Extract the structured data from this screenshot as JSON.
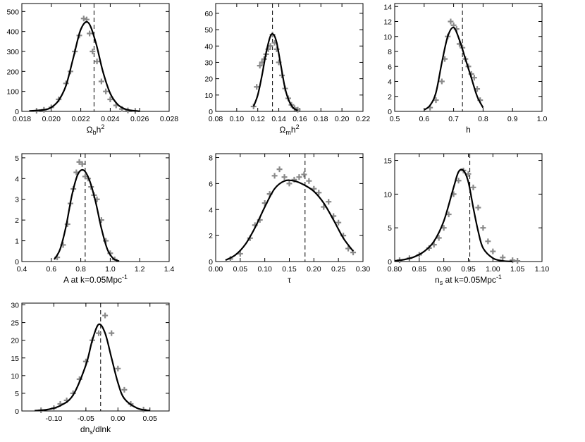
{
  "chart_data": [
    {
      "type": "line",
      "xlabel": "Ωbh2",
      "xlabel_parts": [
        {
          "t": "Ω"
        },
        {
          "t": "b",
          "sub": true
        },
        {
          "t": "h"
        },
        {
          "t": "2",
          "sup": true
        }
      ],
      "xlim": [
        0.018,
        0.028
      ],
      "ylim": [
        0,
        540
      ],
      "xticks": [
        0.018,
        0.02,
        0.022,
        0.024,
        0.026,
        0.028
      ],
      "xtick_labels": [
        "0.018",
        "0.020",
        "0.022",
        "0.024",
        "0.026",
        "0.028"
      ],
      "yticks": [
        0,
        100,
        200,
        300,
        400,
        500
      ],
      "ytick_labels": [
        "0",
        "100",
        "200",
        "300",
        "400",
        "500"
      ],
      "vline": 0.0229,
      "curve": {
        "x": [
          0.0185,
          0.0195,
          0.02,
          0.0205,
          0.021,
          0.0215,
          0.022,
          0.0225,
          0.023,
          0.0235,
          0.024,
          0.0245,
          0.025,
          0.0255,
          0.026
        ],
        "y": [
          2,
          8,
          20,
          55,
          130,
          270,
          410,
          445,
          350,
          200,
          90,
          35,
          12,
          4,
          1
        ]
      },
      "points": {
        "x": [
          0.019,
          0.0195,
          0.02,
          0.0205,
          0.021,
          0.0213,
          0.0216,
          0.0219,
          0.0222,
          0.0224,
          0.0226,
          0.0228,
          0.0231,
          0.0234,
          0.0237,
          0.024,
          0.0244,
          0.0248,
          0.0252,
          0.0257
        ],
        "y": [
          3,
          8,
          20,
          60,
          140,
          200,
          300,
          380,
          465,
          460,
          390,
          300,
          250,
          150,
          100,
          60,
          30,
          12,
          5,
          2
        ]
      }
    },
    {
      "type": "line",
      "xlabel": "Ωmh2",
      "xlabel_parts": [
        {
          "t": "Ω"
        },
        {
          "t": "m",
          "sub": true
        },
        {
          "t": "h"
        },
        {
          "t": "2",
          "sup": true
        }
      ],
      "xlim": [
        0.08,
        0.22
      ],
      "ylim": [
        0,
        66
      ],
      "xticks": [
        0.08,
        0.1,
        0.12,
        0.14,
        0.16,
        0.18,
        0.2,
        0.22
      ],
      "xtick_labels": [
        "0.08",
        "0.10",
        "0.12",
        "0.14",
        "0.16",
        "0.18",
        "0.20",
        "0.22"
      ],
      "yticks": [
        0,
        10,
        20,
        30,
        40,
        50,
        60
      ],
      "ytick_labels": [
        "0",
        "10",
        "20",
        "30",
        "40",
        "50",
        "60"
      ],
      "vline": 0.134,
      "curve": {
        "x": [
          0.116,
          0.12,
          0.124,
          0.128,
          0.132,
          0.135,
          0.138,
          0.142,
          0.146,
          0.15,
          0.154,
          0.158
        ],
        "y": [
          3,
          10,
          22,
          36,
          46,
          47,
          42,
          28,
          14,
          6,
          2,
          0.5
        ]
      },
      "points": {
        "x": [
          0.116,
          0.119,
          0.122,
          0.124,
          0.126,
          0.128,
          0.13,
          0.132,
          0.134,
          0.136,
          0.138,
          0.14,
          0.143,
          0.146,
          0.149,
          0.152,
          0.155,
          0.158
        ],
        "y": [
          3,
          15,
          28,
          30,
          32,
          35,
          38,
          40,
          47,
          42,
          38,
          30,
          22,
          14,
          8,
          4,
          2,
          1
        ]
      }
    },
    {
      "type": "line",
      "xlabel": "h",
      "xlabel_parts": [
        {
          "t": "h"
        }
      ],
      "xlim": [
        0.5,
        1.0
      ],
      "ylim": [
        0,
        14.4
      ],
      "xticks": [
        0.5,
        0.6,
        0.7,
        0.8,
        0.9,
        1.0
      ],
      "xtick_labels": [
        "0.5",
        "0.6",
        "0.7",
        "0.8",
        "0.9",
        "1.0"
      ],
      "yticks": [
        0,
        2,
        4,
        6,
        8,
        10,
        12,
        14
      ],
      "ytick_labels": [
        "0",
        "2",
        "4",
        "6",
        "8",
        "10",
        "12",
        "14"
      ],
      "vline": 0.73,
      "curve": {
        "x": [
          0.6,
          0.62,
          0.64,
          0.66,
          0.68,
          0.7,
          0.72,
          0.74,
          0.76,
          0.78,
          0.8
        ],
        "y": [
          0.2,
          0.8,
          2.5,
          6.5,
          10,
          11.2,
          9.5,
          7,
          4.5,
          2,
          0.5
        ]
      },
      "points": {
        "x": [
          0.62,
          0.64,
          0.66,
          0.67,
          0.68,
          0.69,
          0.7,
          0.71,
          0.72,
          0.73,
          0.74,
          0.75,
          0.76,
          0.77,
          0.78,
          0.79
        ],
        "y": [
          0.5,
          1.5,
          4,
          7,
          10,
          12,
          11.5,
          11,
          9,
          8.5,
          7,
          6,
          5,
          4.5,
          3,
          1.5
        ]
      }
    },
    {
      "type": "line",
      "xlabel": "A at k=0.05Mpc-1",
      "xlabel_parts": [
        {
          "t": "A at k=0.05Mpc"
        },
        {
          "t": "-1",
          "sup": true
        }
      ],
      "xlim": [
        0.4,
        1.4
      ],
      "ylim": [
        0,
        5.2
      ],
      "xticks": [
        0.4,
        0.6,
        0.8,
        1.0,
        1.2,
        1.4
      ],
      "xtick_labels": [
        "0.4",
        "0.6",
        "0.8",
        "1.0",
        "1.2",
        "1.4"
      ],
      "yticks": [
        0,
        1,
        2,
        3,
        4,
        5
      ],
      "ytick_labels": [
        "0",
        "1",
        "2",
        "3",
        "4",
        "5"
      ],
      "vline": 0.83,
      "curve": {
        "x": [
          0.62,
          0.66,
          0.7,
          0.74,
          0.78,
          0.82,
          0.86,
          0.9,
          0.94,
          0.98,
          1.02,
          1.06
        ],
        "y": [
          0.1,
          0.6,
          1.7,
          3.2,
          4.2,
          4.4,
          3.9,
          2.9,
          1.6,
          0.6,
          0.15,
          0.02
        ]
      },
      "points": {
        "x": [
          0.64,
          0.68,
          0.71,
          0.73,
          0.75,
          0.77,
          0.79,
          0.81,
          0.83,
          0.85,
          0.87,
          0.89,
          0.91,
          0.94,
          0.97,
          1.0,
          1.03
        ],
        "y": [
          0.2,
          0.8,
          1.8,
          2.8,
          3.5,
          4.3,
          4.8,
          4.7,
          4.1,
          4.0,
          3.6,
          3.2,
          3.0,
          2.0,
          1.0,
          0.4,
          0.1
        ]
      }
    },
    {
      "type": "line",
      "xlabel": "τ",
      "xlabel_parts": [
        {
          "t": "τ"
        }
      ],
      "xlim": [
        0.0,
        0.3
      ],
      "ylim": [
        0,
        8.3
      ],
      "xticks": [
        0.0,
        0.05,
        0.1,
        0.15,
        0.2,
        0.25,
        0.3
      ],
      "xtick_labels": [
        "0.00",
        "0.05",
        "0.10",
        "0.15",
        "0.20",
        "0.25",
        "0.30"
      ],
      "yticks": [
        0,
        2,
        4,
        6,
        8
      ],
      "ytick_labels": [
        "0",
        "2",
        "4",
        "6",
        "8"
      ],
      "vline": 0.182,
      "curve": {
        "x": [
          0.02,
          0.04,
          0.06,
          0.08,
          0.1,
          0.12,
          0.14,
          0.16,
          0.18,
          0.2,
          0.22,
          0.24,
          0.26,
          0.28
        ],
        "y": [
          0.1,
          0.5,
          1.3,
          2.6,
          4.2,
          5.6,
          6.2,
          6.2,
          5.9,
          5.4,
          4.5,
          3.2,
          1.8,
          0.8
        ]
      },
      "points": {
        "x": [
          0.03,
          0.05,
          0.07,
          0.08,
          0.09,
          0.1,
          0.11,
          0.12,
          0.13,
          0.14,
          0.15,
          0.16,
          0.17,
          0.18,
          0.19,
          0.2,
          0.21,
          0.22,
          0.23,
          0.24,
          0.25,
          0.26,
          0.27,
          0.28
        ],
        "y": [
          0.2,
          0.6,
          1.8,
          2.8,
          3.2,
          4.5,
          5.2,
          6.6,
          7.1,
          6.5,
          6.0,
          6.3,
          6.5,
          6.7,
          6.2,
          5.6,
          5.3,
          4.2,
          4.6,
          3.5,
          3.0,
          2.0,
          1.0,
          0.7
        ]
      }
    },
    {
      "type": "line",
      "xlabel": "ns at k=0.05Mpc-1",
      "xlabel_parts": [
        {
          "t": "n"
        },
        {
          "t": "s",
          "sub": true
        },
        {
          "t": " at k=0.05Mpc"
        },
        {
          "t": "-1",
          "sup": true
        }
      ],
      "xlim": [
        0.8,
        1.1
      ],
      "ylim": [
        0,
        16
      ],
      "xticks": [
        0.8,
        0.85,
        0.9,
        0.95,
        1.0,
        1.05,
        1.1
      ],
      "xtick_labels": [
        "0.80",
        "0.85",
        "0.90",
        "0.95",
        "1.00",
        "1.05",
        "1.10"
      ],
      "yticks": [
        0,
        5,
        10,
        15
      ],
      "ytick_labels": [
        "0",
        "5",
        "10",
        "15"
      ],
      "vline": 0.953,
      "curve": {
        "x": [
          0.8,
          0.82,
          0.84,
          0.86,
          0.88,
          0.9,
          0.92,
          0.93,
          0.94,
          0.95,
          0.96,
          0.97,
          0.98,
          1.0,
          1.02,
          1.04
        ],
        "y": [
          0.1,
          0.3,
          0.7,
          1.5,
          3.0,
          6.0,
          11.0,
          13.3,
          13.5,
          11.8,
          8.0,
          4.5,
          2.0,
          0.5,
          0.1,
          0.02
        ]
      },
      "points": {
        "x": [
          0.81,
          0.83,
          0.85,
          0.87,
          0.88,
          0.89,
          0.9,
          0.91,
          0.92,
          0.93,
          0.94,
          0.95,
          0.96,
          0.97,
          0.98,
          0.99,
          1.0,
          1.02,
          1.04,
          1.05
        ],
        "y": [
          0.2,
          0.5,
          1.0,
          2.0,
          2.5,
          3.5,
          5.0,
          7.0,
          10.0,
          12.0,
          13.5,
          13.0,
          11.0,
          8.0,
          5.0,
          3.0,
          1.5,
          0.6,
          0.2,
          0.1
        ]
      }
    },
    {
      "type": "line",
      "xlabel": "dns/dlnk",
      "xlabel_parts": [
        {
          "t": "dn"
        },
        {
          "t": "s",
          "sub": true
        },
        {
          "t": "/dlnk"
        }
      ],
      "xlim": [
        -0.15,
        0.08
      ],
      "ylim": [
        0,
        30.5
      ],
      "xticks": [
        -0.1,
        -0.05,
        0.0,
        0.05
      ],
      "xtick_labels": [
        "-0.10",
        "-0.05",
        "0.00",
        "0.05"
      ],
      "yticks": [
        0,
        5,
        10,
        15,
        20,
        25,
        30
      ],
      "ytick_labels": [
        "0",
        "5",
        "10",
        "15",
        "20",
        "25",
        "30"
      ],
      "vline": -0.027,
      "curve": {
        "x": [
          -0.13,
          -0.11,
          -0.09,
          -0.07,
          -0.05,
          -0.04,
          -0.03,
          -0.02,
          -0.01,
          0.0,
          0.01,
          0.03,
          0.05
        ],
        "y": [
          0.1,
          0.4,
          1.5,
          4.5,
          13,
          20,
          24.5,
          22,
          15,
          8,
          3.5,
          0.8,
          0.1
        ]
      },
      "points": {
        "x": [
          -0.12,
          -0.1,
          -0.09,
          -0.08,
          -0.07,
          -0.06,
          -0.05,
          -0.04,
          -0.03,
          -0.02,
          -0.01,
          0.0,
          0.01,
          0.02,
          0.04
        ],
        "y": [
          0.2,
          0.8,
          2.0,
          3.0,
          5.0,
          9.0,
          14,
          20,
          22,
          27,
          22,
          12,
          6,
          2,
          0.4
        ]
      }
    }
  ]
}
